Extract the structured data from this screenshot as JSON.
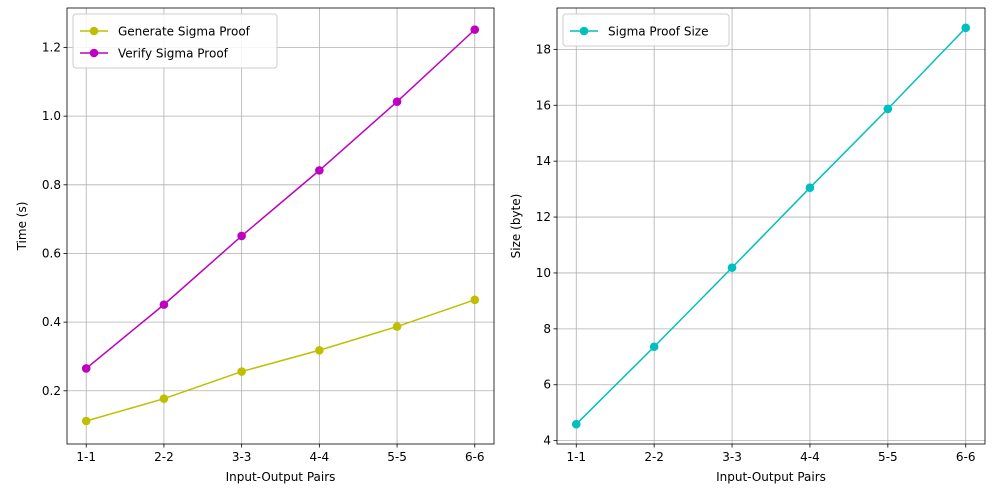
{
  "chart_data": [
    {
      "type": "line",
      "categories": [
        "1-1",
        "2-2",
        "3-3",
        "4-4",
        "5-5",
        "6-6"
      ],
      "xlabel": "Input-Output Pairs",
      "ylabel": "Time (s)",
      "ylim": [
        0.045,
        1.315
      ],
      "yticks": [
        0.2,
        0.4,
        0.6,
        0.8,
        1.0,
        1.2
      ],
      "ytick_labels": [
        "0.2",
        "0.4",
        "0.6",
        "0.8",
        "1.0",
        "1.2"
      ],
      "grid": true,
      "legend_position": "top-left",
      "series": [
        {
          "name": "Generate Sigma Proof",
          "color": "#bfbf00",
          "values": [
            0.112,
            0.177,
            0.256,
            0.318,
            0.387,
            0.465
          ]
        },
        {
          "name": "Verify Sigma Proof",
          "color": "#bf00bf",
          "values": [
            0.265,
            0.451,
            0.651,
            0.842,
            1.042,
            1.252
          ]
        }
      ]
    },
    {
      "type": "line",
      "categories": [
        "1-1",
        "2-2",
        "3-3",
        "4-4",
        "5-5",
        "6-6"
      ],
      "xlabel": "Input-Output Pairs",
      "ylabel": "Size (byte)",
      "ylim": [
        3.88,
        19.48
      ],
      "yticks": [
        4,
        6,
        8,
        10,
        12,
        14,
        16,
        18
      ],
      "ytick_labels": [
        "4",
        "6",
        "8",
        "10",
        "12",
        "14",
        "16",
        "18"
      ],
      "grid": true,
      "legend_position": "top-left",
      "series": [
        {
          "name": "Sigma Proof Size",
          "color": "#00bfbf",
          "values": [
            4.59,
            7.36,
            10.19,
            13.05,
            15.87,
            18.77
          ]
        }
      ]
    }
  ]
}
